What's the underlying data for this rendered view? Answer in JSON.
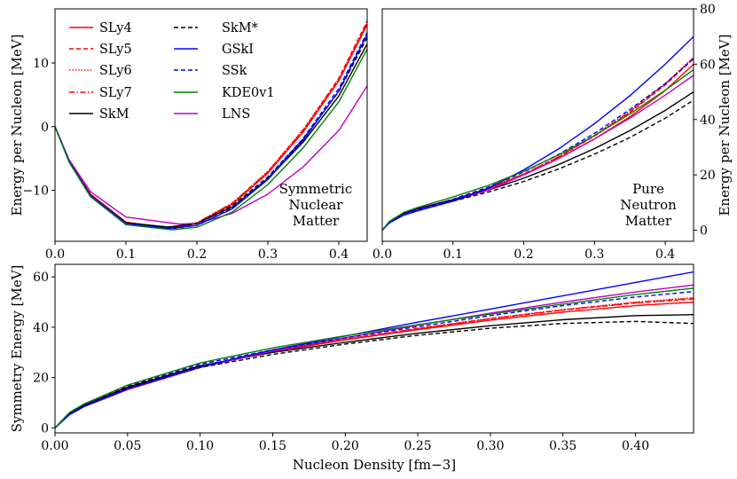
{
  "chart_data": [
    {
      "id": "snm",
      "type": "line",
      "title": "",
      "annotation": [
        "Symmetric",
        "Nuclear",
        "Matter"
      ],
      "xlabel": "",
      "ylabel": "Energy per Nucleon [MeV]",
      "xlim": [
        0,
        0.44
      ],
      "ylim": [
        -18,
        18.5
      ],
      "xticks": [
        0.0,
        0.1,
        0.2,
        0.3,
        0.4
      ],
      "xticklabels": [
        "0.0",
        "0.1",
        "0.2",
        "0.3",
        "0.4"
      ],
      "yticks": [
        -10,
        0,
        10
      ],
      "yticklabels": [
        "−10",
        "0",
        "10"
      ],
      "y_axis_side": "left",
      "legend": "top-left, two columns",
      "series": [
        {
          "name": "SLy4",
          "x": [
            0,
            0.02,
            0.05,
            0.1,
            0.16,
            0.2,
            0.25,
            0.3,
            0.35,
            0.4,
            0.44
          ],
          "y": [
            0,
            -5.4,
            -10.6,
            -15.0,
            -15.97,
            -15.2,
            -12.2,
            -7.3,
            -0.8,
            7.2,
            16.0
          ]
        },
        {
          "name": "SLy5",
          "x": [
            0,
            0.02,
            0.05,
            0.1,
            0.16,
            0.2,
            0.25,
            0.3,
            0.35,
            0.4,
            0.44
          ],
          "y": [
            0,
            -5.4,
            -10.6,
            -15.0,
            -15.98,
            -15.2,
            -12.1,
            -7.1,
            -0.5,
            7.6,
            16.6
          ]
        },
        {
          "name": "SLy6",
          "x": [
            0,
            0.02,
            0.05,
            0.1,
            0.16,
            0.2,
            0.25,
            0.3,
            0.35,
            0.4,
            0.44
          ],
          "y": [
            0,
            -5.4,
            -10.6,
            -15.0,
            -15.92,
            -15.1,
            -12.0,
            -7.0,
            -0.4,
            7.5,
            16.4
          ]
        },
        {
          "name": "SLy7",
          "x": [
            0,
            0.02,
            0.05,
            0.1,
            0.16,
            0.2,
            0.25,
            0.3,
            0.35,
            0.4,
            0.44
          ],
          "y": [
            0,
            -5.4,
            -10.6,
            -15.0,
            -15.89,
            -15.1,
            -12.0,
            -7.1,
            -0.6,
            7.3,
            16.2
          ]
        },
        {
          "name": "SkM",
          "x": [
            0,
            0.02,
            0.05,
            0.1,
            0.16,
            0.2,
            0.25,
            0.3,
            0.35,
            0.4,
            0.44
          ],
          "y": [
            0,
            -5.5,
            -10.8,
            -15.1,
            -15.77,
            -15.2,
            -12.6,
            -8.2,
            -2.4,
            4.8,
            13.0
          ]
        },
        {
          "name": "LNS",
          "x": [
            0,
            0.02,
            0.05,
            0.1,
            0.175,
            0.2,
            0.25,
            0.3,
            0.35,
            0.4,
            0.44
          ],
          "y": [
            0,
            -5.2,
            -10.2,
            -14.2,
            -15.3,
            -15.2,
            -13.6,
            -10.6,
            -6.3,
            -0.6,
            6.4
          ]
        },
        {
          "name": "SkM*",
          "x": [
            0,
            0.02,
            0.05,
            0.1,
            0.16,
            0.2,
            0.25,
            0.3,
            0.35,
            0.4,
            0.44
          ],
          "y": [
            0,
            -5.5,
            -10.8,
            -15.1,
            -15.78,
            -15.2,
            -12.4,
            -7.9,
            -1.9,
            5.5,
            14.0
          ]
        },
        {
          "name": "GSkI",
          "x": [
            0,
            0.02,
            0.05,
            0.1,
            0.16,
            0.2,
            0.25,
            0.3,
            0.35,
            0.4,
            0.44
          ],
          "y": [
            0,
            -5.5,
            -10.8,
            -15.2,
            -16.0,
            -15.5,
            -12.9,
            -8.3,
            -2.1,
            5.6,
            14.5
          ]
        },
        {
          "name": "SSk",
          "x": [
            0,
            0.02,
            0.05,
            0.1,
            0.16,
            0.2,
            0.25,
            0.3,
            0.35,
            0.4,
            0.44
          ],
          "y": [
            0,
            -5.5,
            -10.8,
            -15.2,
            -16.1,
            -15.5,
            -12.8,
            -8.1,
            -1.8,
            6.0,
            14.8
          ]
        },
        {
          "name": "KDE0v1",
          "x": [
            0,
            0.02,
            0.05,
            0.1,
            0.165,
            0.2,
            0.25,
            0.3,
            0.35,
            0.4,
            0.44
          ],
          "y": [
            0,
            -5.6,
            -11.0,
            -15.4,
            -16.2,
            -15.8,
            -13.4,
            -9.1,
            -3.3,
            3.9,
            12.2
          ]
        }
      ]
    },
    {
      "id": "pnm",
      "type": "line",
      "title": "",
      "annotation": [
        "Pure",
        "Neutron",
        "Matter"
      ],
      "xlabel": "",
      "ylabel": "Energy per Nucleon [MeV]",
      "xlim": [
        0,
        0.44
      ],
      "ylim": [
        -4,
        80
      ],
      "xticks": [
        0.0,
        0.1,
        0.2,
        0.3,
        0.4
      ],
      "xticklabels": [
        "0.0",
        "0.1",
        "0.2",
        "0.3",
        "0.4"
      ],
      "yticks": [
        0,
        20,
        40,
        60,
        80
      ],
      "yticklabels": [
        "0",
        "20",
        "40",
        "60",
        "80"
      ],
      "y_axis_side": "right",
      "series": [
        {
          "name": "SLy4",
          "x": [
            0,
            0.01,
            0.03,
            0.05,
            0.1,
            0.15,
            0.2,
            0.25,
            0.3,
            0.35,
            0.4,
            0.44
          ],
          "y": [
            0,
            3.0,
            6.0,
            7.8,
            11.0,
            15.0,
            20.0,
            26.0,
            33.0,
            41.0,
            50.5,
            60.0
          ]
        },
        {
          "name": "SLy5",
          "x": [
            0,
            0.01,
            0.03,
            0.05,
            0.1,
            0.15,
            0.2,
            0.25,
            0.3,
            0.35,
            0.4,
            0.44
          ],
          "y": [
            0,
            3.0,
            6.0,
            7.8,
            11.1,
            15.2,
            20.2,
            26.5,
            34.0,
            42.5,
            52.5,
            62.0
          ]
        },
        {
          "name": "SLy6",
          "x": [
            0,
            0.01,
            0.03,
            0.05,
            0.1,
            0.15,
            0.2,
            0.25,
            0.3,
            0.35,
            0.4,
            0.44
          ],
          "y": [
            0,
            3.0,
            6.0,
            7.8,
            11.1,
            15.2,
            20.3,
            26.7,
            34.3,
            43.0,
            53.0,
            62.5
          ]
        },
        {
          "name": "SLy7",
          "x": [
            0,
            0.01,
            0.03,
            0.05,
            0.1,
            0.15,
            0.2,
            0.25,
            0.3,
            0.35,
            0.4,
            0.44
          ],
          "y": [
            0,
            3.0,
            6.0,
            7.8,
            11.1,
            15.2,
            20.3,
            26.6,
            34.2,
            42.8,
            52.8,
            62.3
          ]
        },
        {
          "name": "SkM",
          "x": [
            0,
            0.01,
            0.03,
            0.05,
            0.1,
            0.15,
            0.2,
            0.25,
            0.3,
            0.35,
            0.4,
            0.44
          ],
          "y": [
            0,
            3.0,
            6.0,
            7.8,
            11.0,
            14.5,
            18.8,
            23.8,
            29.5,
            36.0,
            43.3,
            50.0
          ]
        },
        {
          "name": "LNS",
          "x": [
            0,
            0.01,
            0.03,
            0.05,
            0.1,
            0.15,
            0.2,
            0.25,
            0.3,
            0.35,
            0.4,
            0.44
          ],
          "y": [
            0,
            2.8,
            5.6,
            7.2,
            10.5,
            14.5,
            20.0,
            26.0,
            33.0,
            40.5,
            48.8,
            56.0
          ]
        },
        {
          "name": "SkM*",
          "x": [
            0,
            0.01,
            0.03,
            0.05,
            0.1,
            0.15,
            0.2,
            0.25,
            0.3,
            0.35,
            0.4,
            0.44
          ],
          "y": [
            0,
            3.0,
            5.8,
            7.4,
            10.5,
            13.8,
            17.6,
            22.2,
            27.5,
            33.5,
            40.5,
            47.0
          ]
        },
        {
          "name": "GSkI",
          "x": [
            0,
            0.01,
            0.03,
            0.05,
            0.1,
            0.15,
            0.2,
            0.25,
            0.3,
            0.35,
            0.4,
            0.44
          ],
          "y": [
            0,
            2.6,
            5.4,
            7.0,
            10.5,
            15.2,
            21.8,
            29.5,
            38.5,
            48.6,
            60.0,
            70.0
          ]
        },
        {
          "name": "SSk",
          "x": [
            0,
            0.01,
            0.03,
            0.05,
            0.1,
            0.15,
            0.2,
            0.25,
            0.3,
            0.35,
            0.4,
            0.44
          ],
          "y": [
            0,
            2.8,
            5.8,
            7.6,
            11.2,
            15.6,
            21.0,
            27.5,
            35.0,
            43.6,
            53.0,
            62.0
          ]
        },
        {
          "name": "KDE0v1",
          "x": [
            0,
            0.01,
            0.03,
            0.05,
            0.1,
            0.15,
            0.2,
            0.25,
            0.3,
            0.35,
            0.4,
            0.44
          ],
          "y": [
            0,
            3.2,
            6.4,
            8.2,
            12.0,
            16.2,
            21.3,
            27.3,
            34.2,
            42.0,
            50.6,
            58.0
          ]
        }
      ]
    },
    {
      "id": "esym",
      "type": "line",
      "title": "",
      "xlabel": "Nucleon Density [fm−3]",
      "ylabel": "Symmetry Energy [MeV]",
      "xlim": [
        0,
        0.44
      ],
      "ylim": [
        -2,
        65
      ],
      "xticks": [
        0.0,
        0.05,
        0.1,
        0.15,
        0.2,
        0.25,
        0.3,
        0.35,
        0.4
      ],
      "xticklabels": [
        "0.00",
        "0.05",
        "0.10",
        "0.15",
        "0.20",
        "0.25",
        "0.30",
        "0.35",
        "0.40"
      ],
      "yticks": [
        0,
        20,
        40,
        60
      ],
      "yticklabels": [
        "0",
        "20",
        "40",
        "60"
      ],
      "y_axis_side": "left",
      "series": [
        {
          "name": "SLy4",
          "x": [
            0,
            0.01,
            0.02,
            0.05,
            0.1,
            0.15,
            0.2,
            0.25,
            0.3,
            0.35,
            0.4,
            0.44
          ],
          "y": [
            0,
            5.5,
            8.7,
            15.8,
            24.5,
            30.3,
            35.0,
            39.0,
            42.8,
            46.0,
            48.6,
            50.0
          ]
        },
        {
          "name": "SLy5",
          "x": [
            0,
            0.01,
            0.02,
            0.05,
            0.1,
            0.15,
            0.2,
            0.25,
            0.3,
            0.35,
            0.4,
            0.44
          ],
          "y": [
            0,
            5.5,
            8.7,
            15.8,
            24.5,
            30.4,
            35.2,
            39.5,
            43.4,
            46.8,
            49.6,
            51.2
          ]
        },
        {
          "name": "SLy6",
          "x": [
            0,
            0.01,
            0.02,
            0.05,
            0.1,
            0.15,
            0.2,
            0.25,
            0.3,
            0.35,
            0.4,
            0.44
          ],
          "y": [
            0,
            5.5,
            8.7,
            15.8,
            24.4,
            30.3,
            35.2,
            39.5,
            43.5,
            47.0,
            50.0,
            51.8
          ]
        },
        {
          "name": "SLy7",
          "x": [
            0,
            0.01,
            0.02,
            0.05,
            0.1,
            0.15,
            0.2,
            0.25,
            0.3,
            0.35,
            0.4,
            0.44
          ],
          "y": [
            0,
            5.5,
            8.7,
            15.8,
            24.4,
            30.3,
            35.1,
            39.4,
            43.4,
            46.9,
            49.8,
            51.5
          ]
        },
        {
          "name": "SkM",
          "x": [
            0,
            0.01,
            0.02,
            0.05,
            0.1,
            0.15,
            0.2,
            0.25,
            0.3,
            0.35,
            0.4,
            0.44
          ],
          "y": [
            0,
            5.8,
            9.0,
            16.2,
            24.7,
            30.0,
            34.0,
            37.6,
            40.6,
            43.0,
            44.6,
            45.0
          ]
        },
        {
          "name": "LNS",
          "x": [
            0,
            0.01,
            0.02,
            0.05,
            0.1,
            0.15,
            0.2,
            0.25,
            0.3,
            0.35,
            0.4,
            0.44
          ],
          "y": [
            0,
            5.2,
            8.4,
            15.2,
            24.0,
            30.5,
            35.8,
            40.8,
            45.6,
            50.0,
            54.0,
            56.8
          ]
        },
        {
          "name": "SkM*",
          "x": [
            0,
            0.01,
            0.02,
            0.05,
            0.1,
            0.15,
            0.2,
            0.25,
            0.3,
            0.35,
            0.4,
            0.44
          ],
          "y": [
            0,
            5.7,
            8.9,
            15.9,
            24.0,
            29.2,
            33.3,
            36.8,
            39.6,
            41.5,
            42.3,
            41.5
          ]
        },
        {
          "name": "GSkI",
          "x": [
            0,
            0.01,
            0.02,
            0.05,
            0.1,
            0.15,
            0.2,
            0.25,
            0.3,
            0.35,
            0.4,
            0.44
          ],
          "y": [
            0,
            5.3,
            8.5,
            15.4,
            24.3,
            31.0,
            36.5,
            42.0,
            47.2,
            52.5,
            57.8,
            62.0
          ]
        },
        {
          "name": "SSk",
          "x": [
            0,
            0.01,
            0.02,
            0.05,
            0.1,
            0.15,
            0.2,
            0.25,
            0.3,
            0.35,
            0.4,
            0.44
          ],
          "y": [
            0,
            6.0,
            9.3,
            16.6,
            25.3,
            31.0,
            35.8,
            40.2,
            44.6,
            48.6,
            52.0,
            54.2
          ]
        },
        {
          "name": "KDE0v1",
          "x": [
            0,
            0.01,
            0.02,
            0.05,
            0.1,
            0.15,
            0.2,
            0.25,
            0.3,
            0.35,
            0.4,
            0.44
          ],
          "y": [
            0,
            6.1,
            9.5,
            17.0,
            25.8,
            31.8,
            36.6,
            41.0,
            45.2,
            49.2,
            53.0,
            55.5
          ]
        }
      ]
    }
  ],
  "styles": {
    "SLy4": {
      "color": "#ff0000",
      "dash": "solid"
    },
    "SLy5": {
      "color": "#ff0000",
      "dash": "dashed"
    },
    "SLy6": {
      "color": "#ff0000",
      "dash": "dotted"
    },
    "SLy7": {
      "color": "#ff0000",
      "dash": "dashdot"
    },
    "SkM": {
      "color": "#000000",
      "dash": "solid"
    },
    "LNS": {
      "color": "#bf00bf",
      "dash": "solid"
    },
    "SkM*": {
      "color": "#000000",
      "dash": "dashed"
    },
    "GSkI": {
      "color": "#0000ff",
      "dash": "solid"
    },
    "SSk": {
      "color": "#0000ff",
      "dash": "dashed"
    },
    "KDE0v1": {
      "color": "#008000",
      "dash": "solid"
    }
  },
  "legend": {
    "col1": [
      "SLy4",
      "SLy5",
      "SLy6",
      "SLy7",
      "SkM"
    ],
    "col2": [
      "SkM*",
      "GSkI",
      "SSk",
      "KDE0v1",
      "LNS"
    ]
  }
}
